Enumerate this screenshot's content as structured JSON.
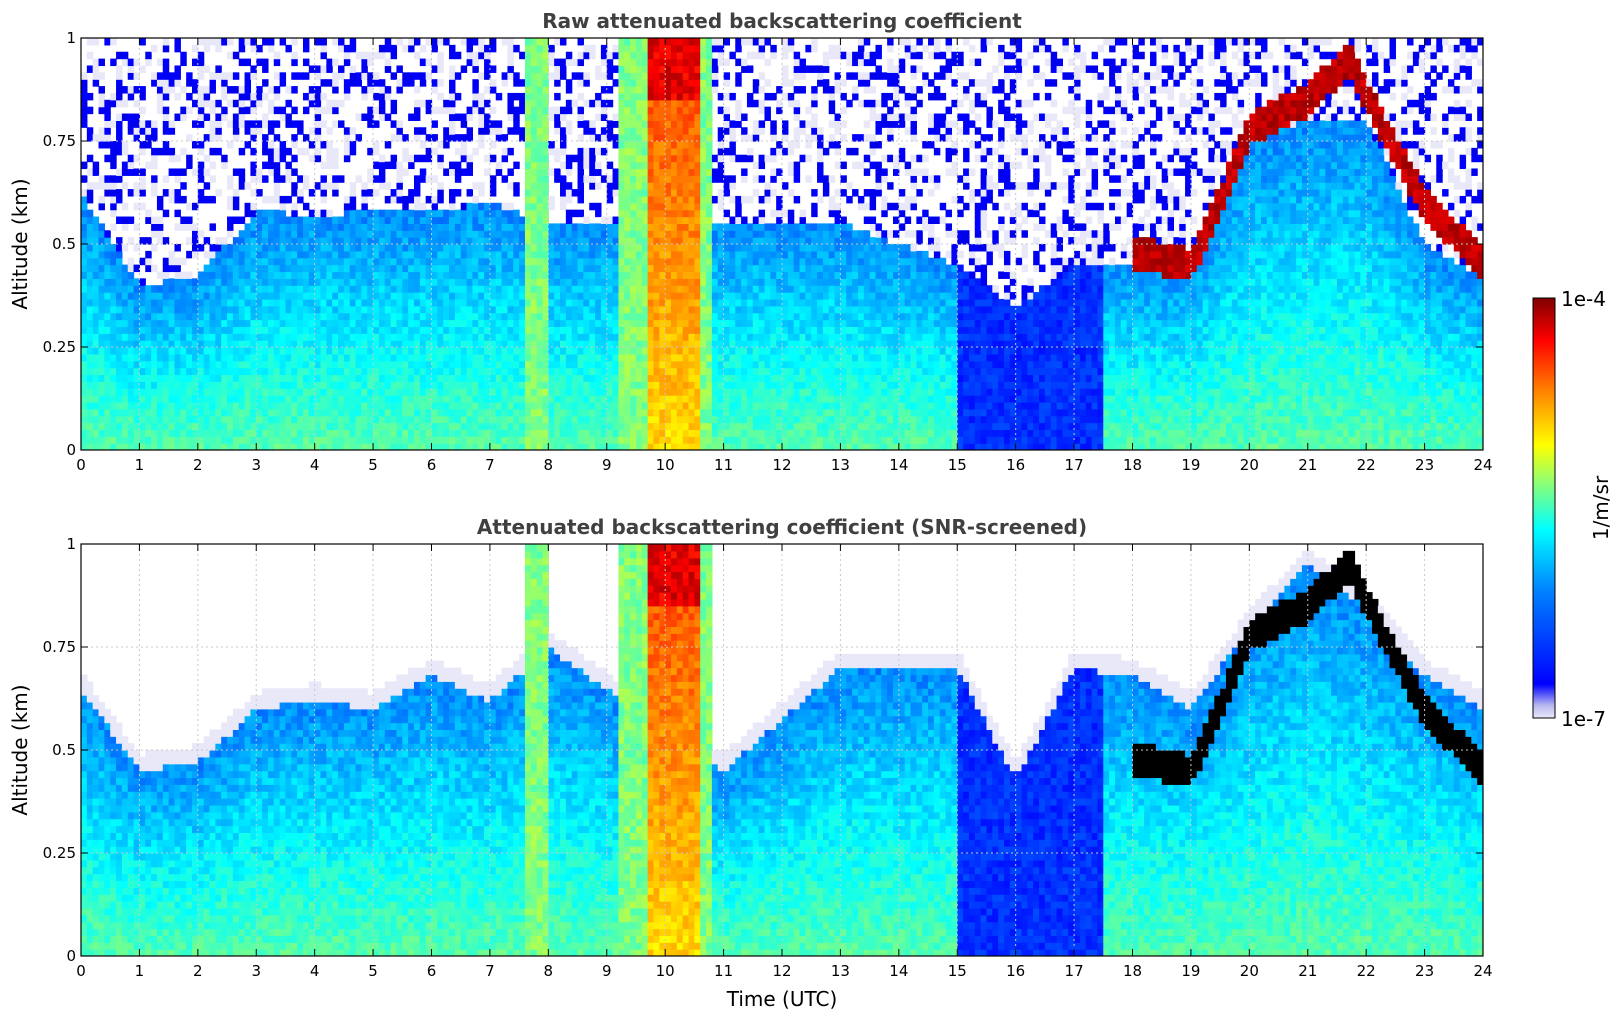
{
  "colormap": {
    "name": "jet",
    "stops": [
      "#00008f",
      "#0000ff",
      "#0080ff",
      "#00ffff",
      "#80ff80",
      "#ffff00",
      "#ff8000",
      "#ff0000",
      "#800000"
    ],
    "low_tail": "#e8e8f8",
    "screen_color": "#000000"
  },
  "colorbar": {
    "label": "1/m/sr",
    "max_label": "1e-4",
    "min_label": "1e-7",
    "scale": "log",
    "range": [
      1e-07,
      0.0001
    ]
  },
  "xaxis": {
    "label": "Time (UTC)",
    "ticks": [
      0,
      1,
      2,
      3,
      4,
      5,
      6,
      7,
      8,
      9,
      10,
      11,
      12,
      13,
      14,
      15,
      16,
      17,
      18,
      19,
      20,
      21,
      22,
      23,
      24
    ],
    "tick_labels": [
      "0",
      "1",
      "2",
      "3",
      "4",
      "5",
      "6",
      "7",
      "8",
      "9",
      "10",
      "11",
      "12",
      "13",
      "14",
      "15",
      "16",
      "17",
      "18",
      "19",
      "20",
      "21",
      "22",
      "23",
      "24"
    ]
  },
  "chart_data": [
    {
      "type": "heatmap",
      "title": "Raw attenuated backscattering coefficient",
      "xlabel": "",
      "ylabel": "Altitude (km)",
      "xlim": [
        0,
        24
      ],
      "ylim": [
        0,
        1
      ],
      "yticks": [
        0,
        0.25,
        0.5,
        0.75,
        1
      ],
      "ytick_labels": [
        "0",
        "0.25",
        "0.5",
        "0.75",
        "1"
      ],
      "grid": true,
      "screened": false,
      "cloud_top_km": [
        [
          0,
          0.62
        ],
        [
          1,
          0.4
        ],
        [
          2,
          0.42
        ],
        [
          3,
          0.58
        ],
        [
          4,
          0.57
        ],
        [
          5,
          0.58
        ],
        [
          6,
          0.58
        ],
        [
          7,
          0.6
        ],
        [
          8,
          0.55
        ],
        [
          11,
          0.55
        ],
        [
          13,
          0.55
        ],
        [
          15,
          0.45
        ],
        [
          16,
          0.35
        ],
        [
          17,
          0.45
        ],
        [
          18,
          0.45
        ],
        [
          19,
          0.45
        ],
        [
          20,
          0.75
        ],
        [
          21,
          0.8
        ],
        [
          22,
          0.8
        ],
        [
          23,
          0.5
        ],
        [
          24,
          0.42
        ]
      ],
      "cloud_layer_km": [
        [
          18,
          0.48
        ],
        [
          19,
          0.45
        ],
        [
          19.5,
          0.6
        ],
        [
          20,
          0.78
        ],
        [
          21,
          0.85
        ],
        [
          21.7,
          0.95
        ],
        [
          22.3,
          0.78
        ],
        [
          23,
          0.6
        ],
        [
          24,
          0.45
        ]
      ],
      "precip_bands_utc": [
        [
          7.6,
          8.0
        ],
        [
          9.2,
          10.8
        ]
      ]
    },
    {
      "type": "heatmap",
      "title": "Attenuated backscattering coefficient (SNR-screened)",
      "xlabel": "Time (UTC)",
      "ylabel": "Altitude (km)",
      "xlim": [
        0,
        24
      ],
      "ylim": [
        0,
        1
      ],
      "yticks": [
        0,
        0.25,
        0.5,
        0.75,
        1
      ],
      "ytick_labels": [
        "0",
        "0.25",
        "0.5",
        "0.75",
        "1"
      ],
      "grid": true,
      "screened": true,
      "cloud_top_km": [
        [
          0,
          0.65
        ],
        [
          1,
          0.45
        ],
        [
          2,
          0.47
        ],
        [
          3,
          0.6
        ],
        [
          4,
          0.62
        ],
        [
          5,
          0.6
        ],
        [
          6,
          0.68
        ],
        [
          7,
          0.62
        ],
        [
          8,
          0.75
        ],
        [
          11,
          0.45
        ],
        [
          13,
          0.7
        ],
        [
          15,
          0.7
        ],
        [
          16,
          0.43
        ],
        [
          17,
          0.7
        ],
        [
          18,
          0.68
        ],
        [
          19,
          0.6
        ],
        [
          20,
          0.8
        ],
        [
          21,
          0.95
        ],
        [
          22,
          0.85
        ],
        [
          23,
          0.68
        ],
        [
          24,
          0.6
        ]
      ],
      "cloud_layer_km": [
        [
          18,
          0.48
        ],
        [
          19,
          0.45
        ],
        [
          19.5,
          0.6
        ],
        [
          20,
          0.78
        ],
        [
          21,
          0.85
        ],
        [
          21.7,
          0.95
        ],
        [
          22.3,
          0.78
        ],
        [
          23,
          0.6
        ],
        [
          24,
          0.45
        ]
      ],
      "precip_bands_utc": [
        [
          7.6,
          8.0
        ],
        [
          9.2,
          10.8
        ]
      ]
    }
  ]
}
